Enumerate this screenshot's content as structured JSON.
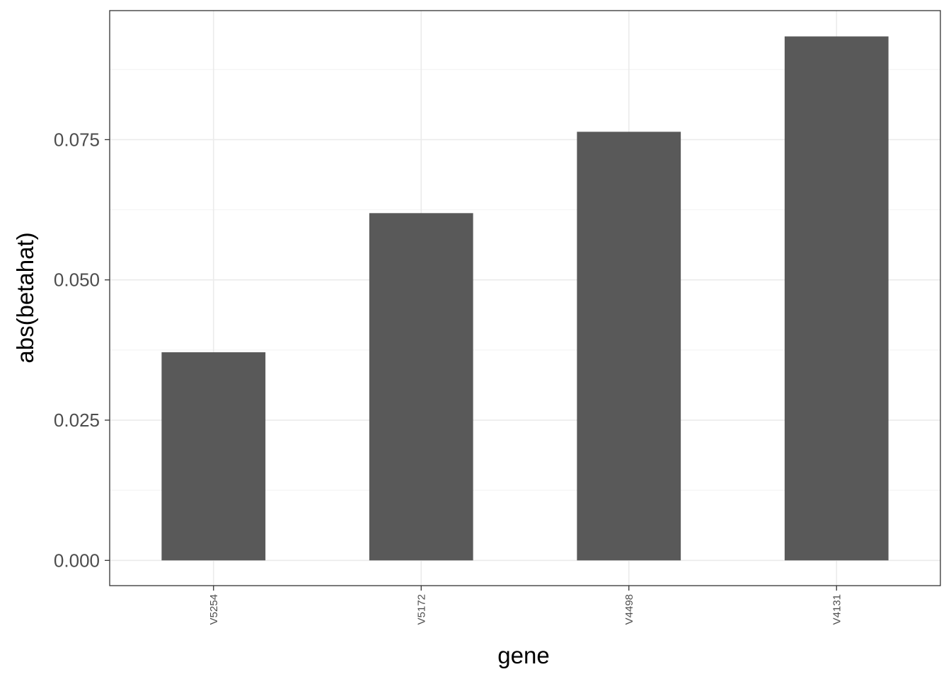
{
  "chart_data": {
    "type": "bar",
    "title": "",
    "xlabel": "gene",
    "ylabel": "abs(betahat)",
    "categories": [
      "V5254",
      "V5172",
      "V4498",
      "V4131"
    ],
    "values": [
      0.0371,
      0.0619,
      0.0764,
      0.0934
    ],
    "ylim": [
      -0.0045,
      0.098
    ],
    "yticks": [
      "0.000",
      "0.025",
      "0.050",
      "0.075"
    ],
    "ytick_values": [
      0,
      0.025,
      0.05,
      0.075
    ],
    "grid": true,
    "bar_color": "#595959",
    "theme": "bw"
  }
}
